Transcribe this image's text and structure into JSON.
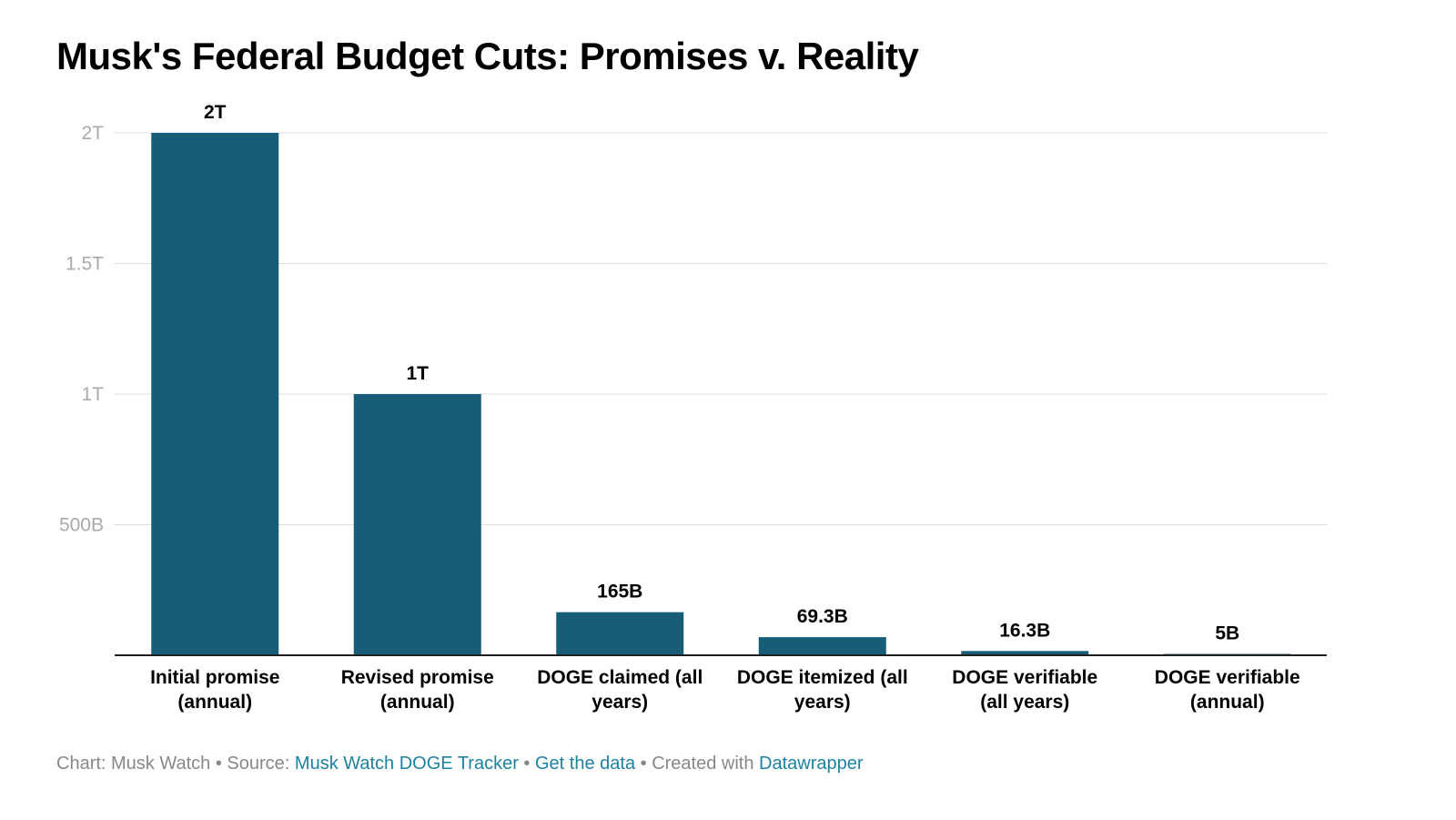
{
  "chart_data": {
    "type": "bar",
    "title": "Musk's Federal Budget Cuts: Promises v. Reality",
    "categories": [
      [
        "Initial promise",
        "(annual)"
      ],
      [
        "Revised promise",
        "(annual)"
      ],
      [
        "DOGE claimed (all",
        "years)"
      ],
      [
        "DOGE itemized (all",
        "years)"
      ],
      [
        "DOGE verifiable",
        "(all years)"
      ],
      [
        "DOGE verifiable",
        "(annual)"
      ]
    ],
    "values": [
      2000,
      1000,
      165,
      69.3,
      16.3,
      5
    ],
    "value_unit": "billions",
    "value_labels": [
      "2T",
      "1T",
      "165B",
      "69.3B",
      "16.3B",
      "5B"
    ],
    "ylim": [
      0,
      2000
    ],
    "yticks": [
      500,
      1000,
      1500,
      2000
    ],
    "ytick_labels": [
      "500B",
      "1T",
      "1.5T",
      "2T"
    ],
    "xlabel": "",
    "ylabel": "",
    "grid": true,
    "bar_color": "#175d78"
  },
  "footer": {
    "chart_credit": "Chart: Musk Watch",
    "sep1": " • ",
    "source_prefix": "Source: ",
    "source_link": "Musk Watch DOGE Tracker",
    "sep2": " • ",
    "data_link": "Get the data",
    "sep3": " • ",
    "created_prefix": "Created with ",
    "created_link": "Datawrapper"
  }
}
